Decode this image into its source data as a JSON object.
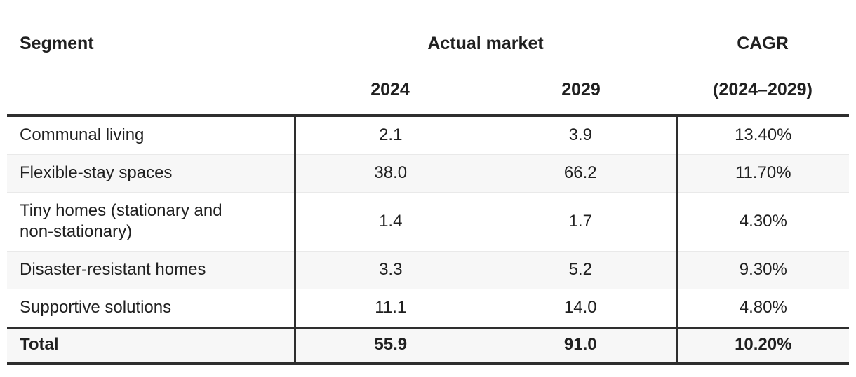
{
  "colors": {
    "border_dark": "#2e2e2e",
    "row_separator": "#e9e9e9",
    "zebra_row_background": "#f7f7f7",
    "text": "#202020",
    "background": "#ffffff"
  },
  "table": {
    "headers": {
      "segment": "Segment",
      "actual_market": "Actual market",
      "cagr_line1": "CAGR",
      "year_2024": "2024",
      "year_2029": "2029",
      "cagr_line2": "(2024–2029)"
    },
    "rows": [
      {
        "segment": "Communal living",
        "v2024": "2.1",
        "v2029": "3.9",
        "cagr": "13.40%"
      },
      {
        "segment": "Flexible-stay spaces",
        "v2024": "38.0",
        "v2029": "66.2",
        "cagr": "11.70%"
      },
      {
        "segment": "Tiny homes (stationary and non-stationary)",
        "v2024": "1.4",
        "v2029": "1.7",
        "cagr": "4.30%"
      },
      {
        "segment": "Disaster-resistant homes",
        "v2024": "3.3",
        "v2029": "5.2",
        "cagr": "9.30%"
      },
      {
        "segment": "Supportive solutions",
        "v2024": "11.1",
        "v2029": "14.0",
        "cagr": "4.80%"
      }
    ],
    "total": {
      "segment": "Total",
      "v2024": "55.9",
      "v2029": "91.0",
      "cagr": "10.20%"
    }
  },
  "chart_data": {
    "type": "table",
    "title": "",
    "column_groups": [
      "Segment",
      "Actual market",
      "CAGR (2024–2029)"
    ],
    "columns": [
      "Segment",
      "2024",
      "2029",
      "CAGR (2024–2029)"
    ],
    "rows": [
      [
        "Communal living",
        2.1,
        3.9,
        "13.40%"
      ],
      [
        "Flexible-stay spaces",
        38.0,
        66.2,
        "11.70%"
      ],
      [
        "Tiny homes (stationary and non-stationary)",
        1.4,
        1.7,
        "4.30%"
      ],
      [
        "Disaster-resistant homes",
        3.3,
        5.2,
        "9.30%"
      ],
      [
        "Supportive solutions",
        11.1,
        14.0,
        "4.80%"
      ],
      [
        "Total",
        55.9,
        91.0,
        "10.20%"
      ]
    ]
  }
}
